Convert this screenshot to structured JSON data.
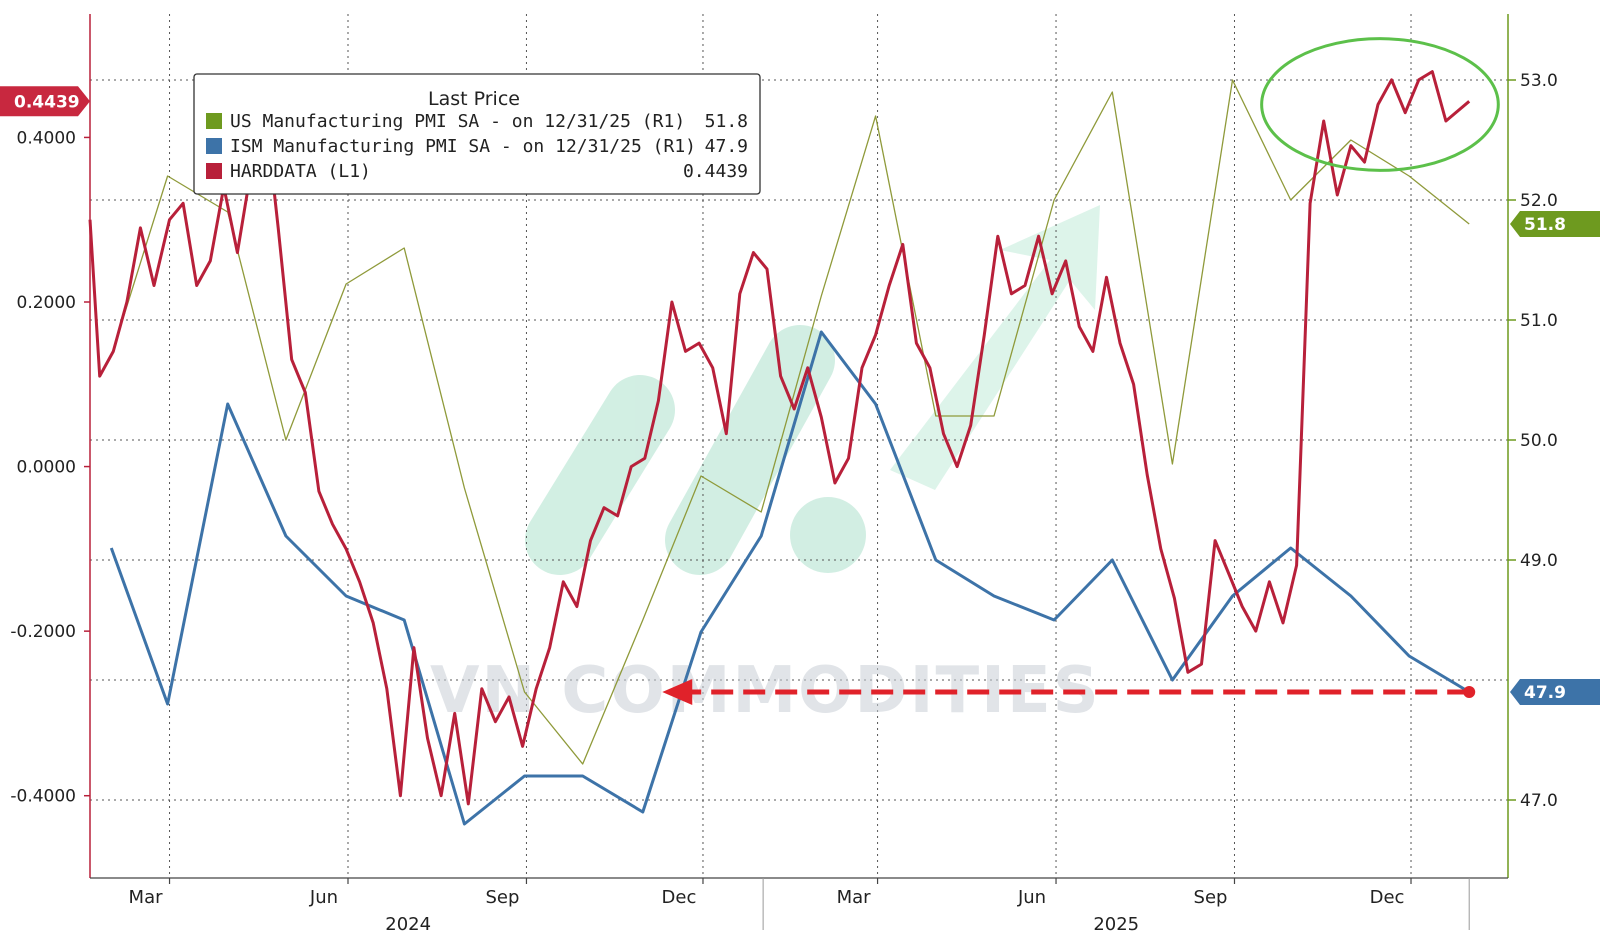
{
  "chart_data": {
    "type": "line",
    "legend": {
      "title": "Last Price",
      "placement": "top-left",
      "entries": [
        {
          "label": "US Manufacturing PMI SA -  on 12/31/25  (R1)",
          "value": "51.8",
          "color": "#6e9a1f"
        },
        {
          "label": "ISM Manufacturing PMI SA -  on 12/31/25  (R1)",
          "value": "47.9",
          "color": "#3d73a8"
        },
        {
          "label": "HARDDATA  (L1)",
          "value": "0.4439",
          "color": "#b8203a"
        }
      ]
    },
    "y_left": {
      "min": -0.5,
      "max": 0.55,
      "ticks": [
        "0.4000",
        "0.2000",
        "0.0000",
        "-0.2000",
        "-0.4000"
      ],
      "tick_values": [
        0.4,
        0.2,
        0.0,
        -0.2,
        -0.4
      ]
    },
    "y_right": {
      "min": 46.35,
      "max": 53.55,
      "ticks": [
        "53.0",
        "52.0",
        "51.0",
        "50.0",
        "49.0",
        "47.0"
      ],
      "tick_values": [
        53.0,
        52.0,
        51.0,
        50.0,
        49.0,
        47.0
      ]
    },
    "x_axis": {
      "month_labels": [
        {
          "label": "Mar",
          "date": "2024-03-01"
        },
        {
          "label": "Jun",
          "date": "2024-06-01"
        },
        {
          "label": "Sep",
          "date": "2024-09-01"
        },
        {
          "label": "Dec",
          "date": "2024-12-01"
        },
        {
          "label": "Mar",
          "date": "2025-03-01"
        },
        {
          "label": "Jun",
          "date": "2025-06-01"
        },
        {
          "label": "Sep",
          "date": "2025-09-01"
        },
        {
          "label": "Dec",
          "date": "2025-12-01"
        }
      ],
      "year_labels": [
        {
          "label": "2024",
          "date": "2024-07-01"
        },
        {
          "label": "2025",
          "date": "2025-07-01"
        }
      ],
      "year_divider_date": "2025-01-01",
      "start": "2024-01-20",
      "end": "2026-01-20"
    },
    "series": [
      {
        "name": "US Manufacturing PMI SA",
        "axis": "right",
        "color": "#8f9a3a",
        "points": [
          [
            "2024-01-31",
            50.7
          ],
          [
            "2024-02-29",
            52.2
          ],
          [
            "2024-03-31",
            51.9
          ],
          [
            "2024-04-30",
            50.0
          ],
          [
            "2024-05-31",
            51.3
          ],
          [
            "2024-06-30",
            51.6
          ],
          [
            "2024-07-31",
            49.6
          ],
          [
            "2024-08-31",
            47.9
          ],
          [
            "2024-09-30",
            47.3
          ],
          [
            "2024-10-31",
            48.5
          ],
          [
            "2024-11-30",
            49.7
          ],
          [
            "2024-12-31",
            49.4
          ],
          [
            "2025-01-31",
            51.2
          ],
          [
            "2025-02-28",
            52.7
          ],
          [
            "2025-03-31",
            50.2
          ],
          [
            "2025-04-30",
            50.2
          ],
          [
            "2025-05-31",
            52.0
          ],
          [
            "2025-06-30",
            52.9
          ],
          [
            "2025-07-31",
            49.8
          ],
          [
            "2025-08-31",
            53.0
          ],
          [
            "2025-09-30",
            52.0
          ],
          [
            "2025-10-31",
            52.5
          ],
          [
            "2025-11-30",
            52.2
          ],
          [
            "2025-12-31",
            51.8
          ]
        ]
      },
      {
        "name": "ISM Manufacturing PMI SA",
        "axis": "right",
        "color": "#3d73a8",
        "points": [
          [
            "2024-01-31",
            49.1
          ],
          [
            "2024-02-29",
            47.8
          ],
          [
            "2024-03-31",
            50.3
          ],
          [
            "2024-04-30",
            49.2
          ],
          [
            "2024-05-31",
            48.7
          ],
          [
            "2024-06-30",
            48.5
          ],
          [
            "2024-07-31",
            46.8
          ],
          [
            "2024-08-31",
            47.2
          ],
          [
            "2024-09-30",
            47.2
          ],
          [
            "2024-10-31",
            46.9
          ],
          [
            "2024-11-30",
            48.4
          ],
          [
            "2024-12-31",
            49.2
          ],
          [
            "2025-01-31",
            50.9
          ],
          [
            "2025-02-28",
            50.3
          ],
          [
            "2025-03-31",
            49.0
          ],
          [
            "2025-04-30",
            48.7
          ],
          [
            "2025-05-31",
            48.5
          ],
          [
            "2025-06-30",
            49.0
          ],
          [
            "2025-07-31",
            48.0
          ],
          [
            "2025-08-31",
            48.7
          ],
          [
            "2025-09-30",
            49.1
          ],
          [
            "2025-10-31",
            48.7
          ],
          [
            "2025-11-30",
            48.2
          ],
          [
            "2025-12-31",
            47.9
          ]
        ]
      },
      {
        "name": "HARDDATA",
        "axis": "left",
        "color": "#b8203a",
        "points": [
          [
            "2024-01-20",
            0.3
          ],
          [
            "2024-01-25",
            0.11
          ],
          [
            "2024-02-01",
            0.14
          ],
          [
            "2024-02-08",
            0.2
          ],
          [
            "2024-02-15",
            0.29
          ],
          [
            "2024-02-22",
            0.22
          ],
          [
            "2024-03-01",
            0.3
          ],
          [
            "2024-03-08",
            0.32
          ],
          [
            "2024-03-15",
            0.22
          ],
          [
            "2024-03-22",
            0.25
          ],
          [
            "2024-03-29",
            0.34
          ],
          [
            "2024-04-05",
            0.26
          ],
          [
            "2024-04-12",
            0.36
          ],
          [
            "2024-04-19",
            0.44
          ],
          [
            "2024-04-26",
            0.29
          ],
          [
            "2024-05-03",
            0.13
          ],
          [
            "2024-05-10",
            0.09
          ],
          [
            "2024-05-17",
            -0.03
          ],
          [
            "2024-05-24",
            -0.07
          ],
          [
            "2024-05-31",
            -0.1
          ],
          [
            "2024-06-07",
            -0.14
          ],
          [
            "2024-06-14",
            -0.19
          ],
          [
            "2024-06-21",
            -0.27
          ],
          [
            "2024-06-28",
            -0.4
          ],
          [
            "2024-07-05",
            -0.22
          ],
          [
            "2024-07-12",
            -0.33
          ],
          [
            "2024-07-19",
            -0.4
          ],
          [
            "2024-07-26",
            -0.3
          ],
          [
            "2024-08-02",
            -0.41
          ],
          [
            "2024-08-09",
            -0.27
          ],
          [
            "2024-08-16",
            -0.31
          ],
          [
            "2024-08-23",
            -0.28
          ],
          [
            "2024-08-30",
            -0.34
          ],
          [
            "2024-09-06",
            -0.27
          ],
          [
            "2024-09-13",
            -0.22
          ],
          [
            "2024-09-20",
            -0.14
          ],
          [
            "2024-09-27",
            -0.17
          ],
          [
            "2024-10-04",
            -0.09
          ],
          [
            "2024-10-11",
            -0.05
          ],
          [
            "2024-10-18",
            -0.06
          ],
          [
            "2024-10-25",
            0.0
          ],
          [
            "2024-11-01",
            0.01
          ],
          [
            "2024-11-08",
            0.08
          ],
          [
            "2024-11-15",
            0.2
          ],
          [
            "2024-11-22",
            0.14
          ],
          [
            "2024-11-29",
            0.15
          ],
          [
            "2024-12-06",
            0.12
          ],
          [
            "2024-12-13",
            0.04
          ],
          [
            "2024-12-20",
            0.21
          ],
          [
            "2024-12-27",
            0.26
          ],
          [
            "2025-01-03",
            0.24
          ],
          [
            "2025-01-10",
            0.11
          ],
          [
            "2025-01-17",
            0.07
          ],
          [
            "2025-01-24",
            0.12
          ],
          [
            "2025-01-31",
            0.06
          ],
          [
            "2025-02-07",
            -0.02
          ],
          [
            "2025-02-14",
            0.01
          ],
          [
            "2025-02-21",
            0.12
          ],
          [
            "2025-02-28",
            0.16
          ],
          [
            "2025-03-07",
            0.22
          ],
          [
            "2025-03-14",
            0.27
          ],
          [
            "2025-03-21",
            0.15
          ],
          [
            "2025-03-28",
            0.12
          ],
          [
            "2025-04-04",
            0.04
          ],
          [
            "2025-04-11",
            0.0
          ],
          [
            "2025-04-18",
            0.05
          ],
          [
            "2025-04-25",
            0.16
          ],
          [
            "2025-05-02",
            0.28
          ],
          [
            "2025-05-09",
            0.21
          ],
          [
            "2025-05-16",
            0.22
          ],
          [
            "2025-05-23",
            0.28
          ],
          [
            "2025-05-30",
            0.21
          ],
          [
            "2025-06-06",
            0.25
          ],
          [
            "2025-06-13",
            0.17
          ],
          [
            "2025-06-20",
            0.14
          ],
          [
            "2025-06-27",
            0.23
          ],
          [
            "2025-07-04",
            0.15
          ],
          [
            "2025-07-11",
            0.1
          ],
          [
            "2025-07-18",
            -0.01
          ],
          [
            "2025-07-25",
            -0.1
          ],
          [
            "2025-08-01",
            -0.16
          ],
          [
            "2025-08-08",
            -0.25
          ],
          [
            "2025-08-15",
            -0.24
          ],
          [
            "2025-08-22",
            -0.09
          ],
          [
            "2025-08-29",
            -0.13
          ],
          [
            "2025-09-05",
            -0.17
          ],
          [
            "2025-09-12",
            -0.2
          ],
          [
            "2025-09-19",
            -0.14
          ],
          [
            "2025-09-26",
            -0.19
          ],
          [
            "2025-10-03",
            -0.12
          ],
          [
            "2025-10-10",
            0.32
          ],
          [
            "2025-10-17",
            0.42
          ],
          [
            "2025-10-24",
            0.33
          ],
          [
            "2025-10-31",
            0.39
          ],
          [
            "2025-11-07",
            0.37
          ],
          [
            "2025-11-14",
            0.44
          ],
          [
            "2025-11-21",
            0.47
          ],
          [
            "2025-11-28",
            0.43
          ],
          [
            "2025-12-05",
            0.47
          ],
          [
            "2025-12-12",
            0.48
          ],
          [
            "2025-12-19",
            0.42
          ],
          [
            "2025-12-31",
            0.4439
          ]
        ]
      }
    ],
    "right_tags": [
      {
        "text": "51.8",
        "value": 51.8,
        "color": "#6e9a1f"
      },
      {
        "text": "47.9",
        "value": 47.9,
        "color": "#3d73a8"
      }
    ],
    "left_tag": {
      "text": "0.4439",
      "value": 0.4439,
      "color": "#c8283f"
    },
    "annotations": {
      "dashed_arrow": {
        "color": "#e0222a",
        "from_date": "2025-12-31",
        "to_date": "2024-11-10",
        "value": 47.9
      },
      "highlight_ellipse": {
        "color": "#5cc04a",
        "from_date": "2025-09-15",
        "to_date": "2026-01-15",
        "y_from": 0.36,
        "y_to": 0.52
      }
    },
    "watermark": "VN COMMODITIES",
    "grid": true
  }
}
